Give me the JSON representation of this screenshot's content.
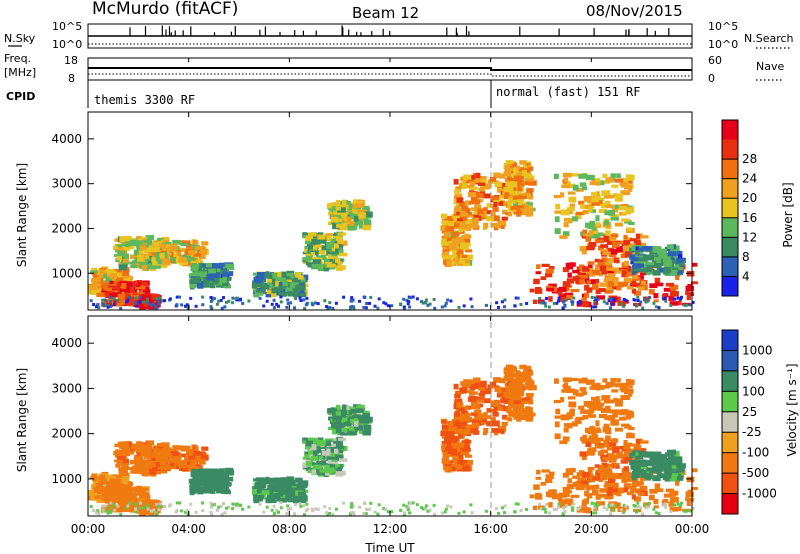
{
  "header": {
    "station": "McMurdo (fitACF)",
    "beam": "Beam 12",
    "date": "08/Nov/2015"
  },
  "left_labels": {
    "nsky": "N.Sky",
    "freq": "Freq.",
    "mhz": "[MHz]",
    "cpid": "CPID"
  },
  "right_labels": {
    "nsearch": "N.Search",
    "nave": "Nave"
  },
  "strip_ticks": {
    "noise_left_top": "10^5",
    "noise_left_bottom": "10^0",
    "noise_right_top": "10^5",
    "noise_right_bottom": "10^0",
    "freq_left_top": "18",
    "freq_left_bottom": "8",
    "nave_right_top": "60",
    "nave_right_bottom": "0"
  },
  "cpid_segments": [
    {
      "label": "themis 3300 RF"
    },
    {
      "label": "normal (fast) 151 RF"
    }
  ],
  "x_axis": {
    "label": "Time UT",
    "ticks": [
      "00:00",
      "04:00",
      "08:00",
      "12:00",
      "16:00",
      "20:00",
      "00:00"
    ],
    "range_hours": [
      0,
      24
    ],
    "mode_change_hour": 16
  },
  "y_axis": {
    "label": "Slant Range [km]",
    "ticks": [
      "1000",
      "2000",
      "3000",
      "4000"
    ],
    "range_km": [
      180,
      4600
    ]
  },
  "power_colorbar": {
    "label": "Power [dB]",
    "ticks": [
      "4",
      "8",
      "12",
      "16",
      "20",
      "24",
      "28"
    ],
    "colors": [
      "#1b22e8",
      "#2b62b6",
      "#3a8a64",
      "#5cb85c",
      "#e8c420",
      "#f0a020",
      "#f07010",
      "#e83010",
      "#e8001a"
    ]
  },
  "velocity_colorbar": {
    "label": "Velocity [m s⁻¹]",
    "ticks": [
      "1000",
      "500",
      "100",
      "25",
      "-25",
      "-100",
      "-500",
      "-1000"
    ],
    "colors": [
      "#1b3ec8",
      "#2a5ab0",
      "#3a8a64",
      "#5cc84c",
      "#c8c8b8",
      "#f0a020",
      "#f07a10",
      "#f05010",
      "#e80010"
    ]
  },
  "chart_data": {
    "type": "heatmap",
    "panels": [
      {
        "name": "Power",
        "unit": "dB",
        "range": [
          0,
          30
        ]
      },
      {
        "name": "Velocity",
        "unit": "m s-1",
        "range": [
          -1000,
          1000
        ]
      }
    ],
    "blobs": [
      {
        "t": [
          0.0,
          1.5
        ],
        "r": [
          500,
          1100
        ],
        "p": 18,
        "v": -150
      },
      {
        "t": [
          0.5,
          2.2
        ],
        "r": [
          300,
          800
        ],
        "p": 26,
        "v": -200
      },
      {
        "t": [
          2.0,
          2.6
        ],
        "r": [
          250,
          500
        ],
        "p": 28,
        "v": -300
      },
      {
        "t": [
          1.0,
          3.0
        ],
        "r": [
          1100,
          1800
        ],
        "p": 14,
        "v": -400
      },
      {
        "t": [
          2.5,
          4.5
        ],
        "r": [
          1200,
          1700
        ],
        "p": 16,
        "v": -450
      },
      {
        "t": [
          4.0,
          5.5
        ],
        "r": [
          700,
          1200
        ],
        "p": 8,
        "v": 300
      },
      {
        "t": [
          6.5,
          8.5
        ],
        "r": [
          500,
          1000
        ],
        "p": 10,
        "v": 200
      },
      {
        "t": [
          8.5,
          10.0
        ],
        "r": [
          1100,
          1900
        ],
        "p": 12,
        "v": 100
      },
      {
        "t": [
          9.5,
          11.0
        ],
        "r": [
          2000,
          2600
        ],
        "p": 14,
        "v": 120
      },
      {
        "t": [
          14.0,
          15.0
        ],
        "r": [
          1200,
          2300
        ],
        "p": 18,
        "v": -500
      },
      {
        "t": [
          14.5,
          16.5
        ],
        "r": [
          2000,
          3200
        ],
        "p": 20,
        "v": -500
      },
      {
        "t": [
          16.5,
          17.5
        ],
        "r": [
          2300,
          3500
        ],
        "p": 18,
        "v": -400
      },
      {
        "t": [
          17.5,
          24.0
        ],
        "r": [
          300,
          1200
        ],
        "p": 26,
        "v": -250
      },
      {
        "t": [
          19.5,
          22.0
        ],
        "r": [
          600,
          1900
        ],
        "p": 22,
        "v": -450
      },
      {
        "t": [
          18.5,
          21.5
        ],
        "r": [
          1800,
          3200
        ],
        "p": 16,
        "v": -350
      },
      {
        "t": [
          21.5,
          23.5
        ],
        "r": [
          1000,
          1600
        ],
        "p": 8,
        "v": 200
      }
    ]
  }
}
